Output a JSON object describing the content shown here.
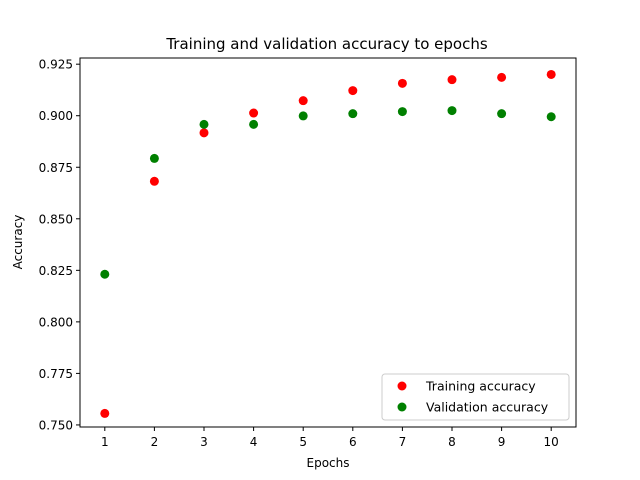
{
  "chart_data": {
    "type": "scatter",
    "title": "Training and validation accuracy to epochs",
    "xlabel": "Epochs",
    "ylabel": "Accuracy",
    "x": [
      1,
      2,
      3,
      4,
      5,
      6,
      7,
      8,
      9,
      10
    ],
    "xlim": [
      0.5,
      10.5
    ],
    "ylim": [
      0.749,
      0.928
    ],
    "xticks": [
      1,
      2,
      3,
      4,
      5,
      6,
      7,
      8,
      9,
      10
    ],
    "yticks": [
      0.75,
      0.775,
      0.8,
      0.825,
      0.85,
      0.875,
      0.9,
      0.925
    ],
    "ytick_labels": [
      "0.750",
      "0.775",
      "0.800",
      "0.825",
      "0.850",
      "0.875",
      "0.900",
      "0.925"
    ],
    "grid": false,
    "legend_position": "bottom-right",
    "series": [
      {
        "name": "Training accuracy",
        "color": "#ff0000",
        "values": [
          0.7556,
          0.8682,
          0.8917,
          0.9013,
          0.9073,
          0.9122,
          0.9157,
          0.9175,
          0.9186,
          0.92
        ]
      },
      {
        "name": "Validation accuracy",
        "color": "#008000",
        "values": [
          0.8231,
          0.8793,
          0.8958,
          0.8958,
          0.8999,
          0.901,
          0.902,
          0.9025,
          0.901,
          0.8995
        ]
      }
    ]
  }
}
